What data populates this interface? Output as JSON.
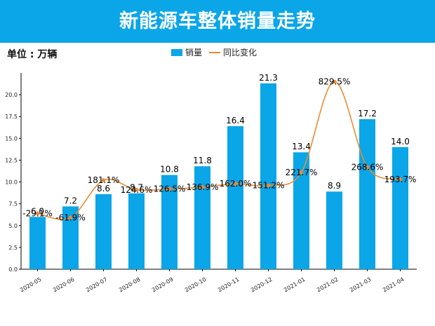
{
  "banner": {
    "title": "新能源车整体销量走势"
  },
  "unit_label": "单位 : 万辆",
  "legend": {
    "sales": "销量",
    "yoy": "同比变化"
  },
  "colors": {
    "banner": "#0aa6e8",
    "bar": "#0aa6e8",
    "line": "#e98a35"
  },
  "chart_data": {
    "type": "bar",
    "title": "新能源车整体销量走势",
    "xlabel": "",
    "ylabel": "",
    "ylim": [
      0,
      22.5
    ],
    "yticks": [
      "0.0",
      "2.5",
      "5.0",
      "7.5",
      "10.0",
      "12.5",
      "15.0",
      "17.5",
      "20.0"
    ],
    "categories": [
      "2020-05",
      "2020-06",
      "2020-07",
      "2020-08",
      "2020-09",
      "2020-10",
      "2020-11",
      "2020-12",
      "2021-01",
      "2021-02",
      "2021-03",
      "2021-04"
    ],
    "series": [
      {
        "name": "销量",
        "type": "bar",
        "values": [
          6.0,
          7.2,
          8.6,
          8.7,
          10.8,
          11.8,
          16.4,
          21.3,
          13.4,
          8.9,
          17.2,
          14.0
        ],
        "labels": [
          "6.0",
          "7.2",
          "8.6",
          "8.7",
          "10.8",
          "11.8",
          "16.4",
          "21.3",
          "13.4",
          "8.9",
          "17.2",
          "14.0"
        ]
      },
      {
        "name": "同比变化",
        "type": "line",
        "values": [
          6.4,
          5.9,
          10.2,
          9.1,
          9.2,
          9.4,
          9.8,
          9.6,
          11.1,
          21.5,
          11.7,
          10.3
        ],
        "labels": [
          "-29.1%",
          "-61.9%",
          "181.1%",
          "124.6%",
          "126.5%",
          "136.9%",
          "162.0%",
          "151.2%",
          "221.7%",
          "829.5%",
          "268.6%",
          "193.7%"
        ]
      }
    ]
  }
}
